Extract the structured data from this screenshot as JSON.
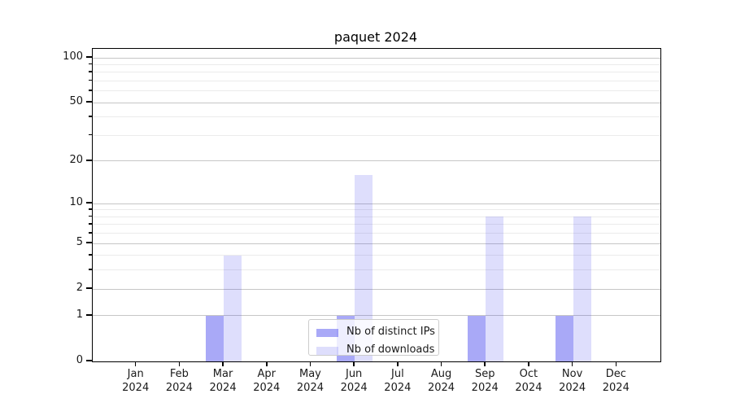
{
  "chart_data": {
    "type": "bar",
    "title": "paquet 2024",
    "categories": [
      "Jan",
      "Feb",
      "Mar",
      "Apr",
      "May",
      "Jun",
      "Jul",
      "Aug",
      "Sep",
      "Oct",
      "Nov",
      "Dec"
    ],
    "x_sublabel": "2024",
    "series": [
      {
        "name": "Nb of distinct IPs",
        "color_hex": "#3232EB",
        "alpha": 0.42,
        "values": [
          0,
          0,
          1,
          0,
          0,
          1,
          0,
          0,
          1,
          0,
          1,
          0
        ]
      },
      {
        "name": "Nb of downloads",
        "color_hex": "#3232EB",
        "alpha": 0.16,
        "values": [
          0,
          0,
          4,
          0,
          0,
          16,
          0,
          0,
          8,
          0,
          8,
          0
        ]
      }
    ],
    "y_scale": "log1p",
    "ylim": [
      0,
      115
    ],
    "y_major_ticks": [
      0,
      1,
      2,
      5,
      10,
      20,
      50,
      100
    ],
    "y_minor_ticks": [
      3,
      4,
      6,
      7,
      8,
      9,
      30,
      40,
      60,
      70,
      80,
      90
    ],
    "grid": "major+minor",
    "grid_major_color": "#c6c6c6",
    "grid_minor_color": "#ebebeb",
    "axis_color": "#000000",
    "text_color": "#1a1a1a",
    "legend": {
      "position": "lower center"
    }
  }
}
